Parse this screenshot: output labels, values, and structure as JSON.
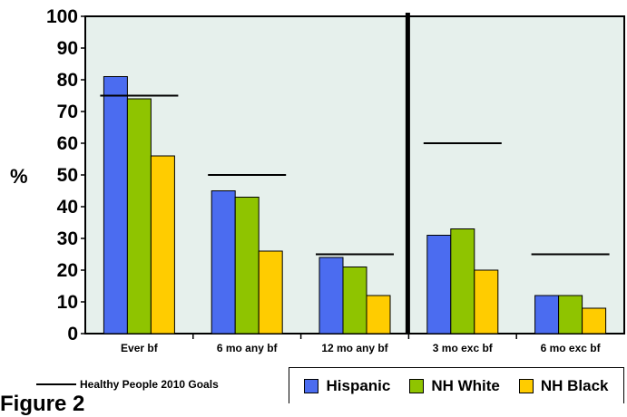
{
  "chart_data": {
    "type": "bar",
    "ylabel": "%",
    "ylim": [
      0,
      100
    ],
    "yticks": [
      0,
      10,
      20,
      30,
      40,
      50,
      60,
      70,
      80,
      90,
      100
    ],
    "categories": [
      "Ever bf",
      "6 mo any bf",
      "12 mo any bf",
      "3 mo exc bf",
      "6 mo exc bf"
    ],
    "series": [
      {
        "name": "Hispanic",
        "color": "#4b6cf0",
        "values": [
          81,
          45,
          24,
          31,
          12
        ]
      },
      {
        "name": "NH White",
        "color": "#8fc400",
        "values": [
          74,
          43,
          21,
          33,
          12
        ]
      },
      {
        "name": "NH Black",
        "color": "#ffcc00",
        "values": [
          56,
          26,
          12,
          20,
          8
        ]
      }
    ],
    "goals": {
      "name": "Healthy People 2010 Goals",
      "values": [
        75,
        50,
        25,
        60,
        25
      ]
    },
    "divider_after_category": 2,
    "plot_background": "#e6f0ec",
    "grid": false,
    "legend_position": "bottom"
  },
  "caption": "Figure 2"
}
